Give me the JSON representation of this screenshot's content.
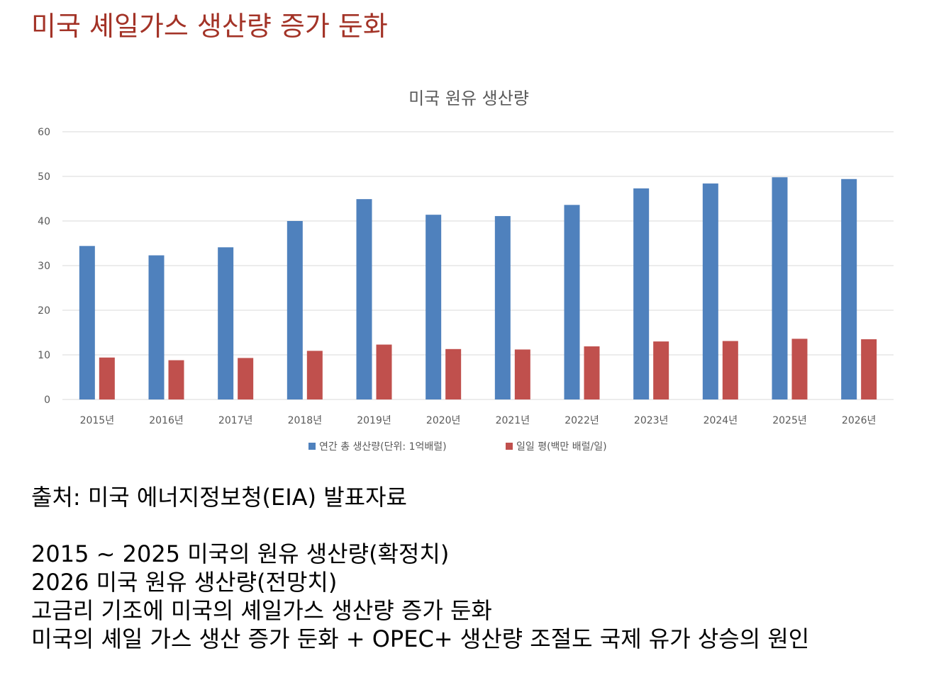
{
  "page_title": "미국 셰일가스 생산량 증가 둔화",
  "source_text": "출처: 미국 에너지정보청(EIA) 발표자료",
  "notes": [
    "2015 ~ 2025 미국의 원유 생산량(확정치)",
    "2026 미국 원유 생산량(전망치)",
    "고금리 기조에 미국의 셰일가스 생산량 증가 둔화",
    "미국의 셰일 가스 생산 증가 둔화 + OPEC+ 생산량 조절도 국제 유가 상승의 원인"
  ],
  "chart_data": {
    "type": "bar",
    "title": "미국 원유 생산량",
    "xlabel": "",
    "ylabel": "",
    "categories": [
      "2015년",
      "2016년",
      "2017년",
      "2018년",
      "2019년",
      "2020년",
      "2021년",
      "2022년",
      "2023년",
      "2024년",
      "2025년",
      "2026년"
    ],
    "series": [
      {
        "name": "연간 총 생산량(단위: 1억배럴)",
        "color": "#4f81bd",
        "values": [
          34.4,
          32.3,
          34.1,
          40.0,
          44.9,
          41.4,
          41.1,
          43.6,
          47.3,
          48.4,
          49.8,
          49.4
        ]
      },
      {
        "name": "일일 평(백만 배럴/일)",
        "color": "#c0504d",
        "values": [
          9.4,
          8.8,
          9.3,
          10.9,
          12.3,
          11.3,
          11.2,
          11.9,
          13.0,
          13.1,
          13.6,
          13.5
        ]
      }
    ],
    "ylim": [
      0,
      60
    ],
    "yticks": [
      0,
      10,
      20,
      30,
      40,
      50,
      60
    ],
    "grid": true,
    "legend_position": "bottom"
  }
}
